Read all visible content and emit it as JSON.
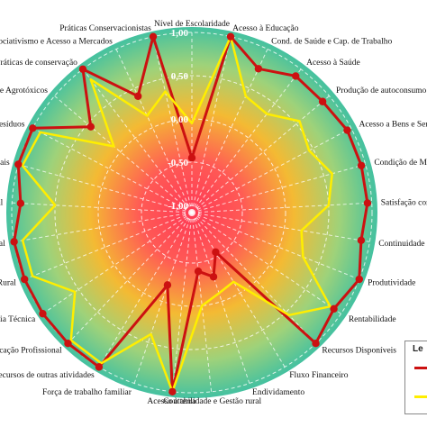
{
  "chart_data": {
    "type": "radar",
    "rlim": [
      -1.0,
      1.0
    ],
    "ticks": [
      "-1,00",
      "-0,50",
      "0,00",
      "0,50",
      "1,00"
    ],
    "tick_values": [
      -1.0,
      -0.5,
      0.0,
      0.5,
      1.0
    ],
    "grid": true,
    "legend_position": "bottom-right",
    "categories": [
      "Nível de Escolaridade",
      "Acesso à Educação",
      "Cond. de Saúde e Cap. de Trabalho",
      "Acesso à Saúde",
      "Produção de autoconsumo",
      "Acesso a Bens e Serviços",
      "Condição de Moradia",
      "Satisfação com o",
      "Continuidade e",
      "Produtividade",
      "Rentabilidade",
      "Recursos Disponíveis",
      "Fluxo Financeiro",
      "Endividamento",
      "Contabilidade e Gestão rural",
      "Acesso à terra",
      "Força de trabalho familiar",
      "Recursos de outras atividades",
      "Qualificação Profissional",
      "Assistência Técnica",
      "Crédito Rural",
      "Comercial",
      "Gestão Ambiental",
      "Recursos Naturais",
      "Resíduos",
      "Uso de Agrotóxicos",
      "Práticas de conservação",
      "Associativismo e Acesso a Mercados",
      "Práticas Conservacionistas"
    ],
    "series": [
      {
        "color": "#cc1111",
        "values": [
          -0.45,
          1.0,
          0.75,
          0.9,
          0.9,
          0.95,
          0.95,
          0.95,
          0.9,
          1.0,
          0.9,
          1.0,
          -0.55,
          -0.3,
          -0.4,
          1.0,
          -0.2,
          1.0,
          1.0,
          1.0,
          1.0,
          1.0,
          0.9,
          1.0,
          1.0,
          0.45,
          1.0,
          0.4,
          1.0
        ]
      },
      {
        "color": "#ffee00",
        "values": [
          -0.05,
          1.0,
          0.4,
          0.35,
          0.55,
          0.45,
          0.6,
          0.5,
          0.2,
          0.3,
          0.85,
          0.55,
          -0.15,
          -0.1,
          0.0,
          1.0,
          0.4,
          0.95,
          0.95,
          0.55,
          0.9,
          0.9,
          0.5,
          0.95,
          0.9,
          0.1,
          0.85,
          0.15,
          0.35
        ]
      }
    ]
  },
  "legend": {
    "title": "Le",
    "entries": [
      "",
      ""
    ]
  },
  "colors": {
    "center": "#ff3a55",
    "mid": "#f4ba33",
    "outer": "#44c1a0"
  }
}
